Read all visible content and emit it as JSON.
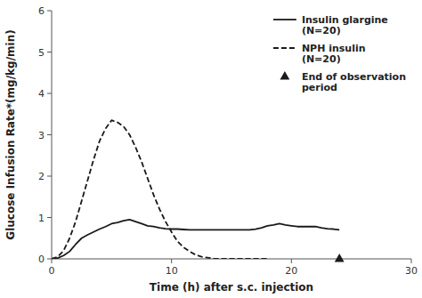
{
  "chart_data": {
    "type": "line",
    "xlabel": "Time (h) after s.c. injection",
    "ylabel": "Glucose Infusion Rate*(mg/kg/min)",
    "xlim": [
      0,
      30
    ],
    "ylim": [
      0,
      6
    ],
    "xticks": [
      0,
      10,
      20,
      30
    ],
    "yticks": [
      0,
      1,
      2,
      3,
      4,
      5,
      6
    ],
    "grid": false,
    "legend": "upper right",
    "series": [
      {
        "name": "Insulin glargine\n(N=20)",
        "color": "#1a1a1a",
        "line_style": "solid",
        "x": [
          0,
          0.5,
          1.0,
          1.5,
          2.0,
          2.5,
          3.0,
          3.5,
          4.0,
          4.5,
          5.0,
          5.5,
          6.0,
          6.5,
          7.0,
          7.5,
          8.0,
          8.5,
          9.0,
          9.5,
          10.0,
          10.5,
          11.0,
          11.5,
          12.0,
          12.5,
          13.0,
          13.5,
          14.0,
          14.5,
          15.0,
          15.5,
          16.0,
          16.5,
          17.0,
          17.5,
          18.0,
          18.5,
          19.0,
          19.5,
          20.0,
          20.5,
          21.0,
          21.5,
          22.0,
          22.5,
          23.0,
          23.5,
          24.0
        ],
        "values": [
          0.0,
          0.02,
          0.08,
          0.18,
          0.35,
          0.5,
          0.58,
          0.65,
          0.72,
          0.78,
          0.85,
          0.88,
          0.92,
          0.95,
          0.9,
          0.85,
          0.8,
          0.78,
          0.75,
          0.73,
          0.72,
          0.72,
          0.71,
          0.7,
          0.7,
          0.7,
          0.7,
          0.7,
          0.7,
          0.7,
          0.7,
          0.7,
          0.7,
          0.7,
          0.72,
          0.75,
          0.8,
          0.82,
          0.85,
          0.82,
          0.8,
          0.78,
          0.78,
          0.78,
          0.78,
          0.75,
          0.73,
          0.72,
          0.7
        ]
      },
      {
        "name": "NPH insulin\n(N=20)",
        "color": "#1a1a1a",
        "line_style": "dashed",
        "x": [
          0,
          0.5,
          1.0,
          1.5,
          2.0,
          2.5,
          3.0,
          3.5,
          4.0,
          4.5,
          5.0,
          5.5,
          6.0,
          6.5,
          7.0,
          7.5,
          8.0,
          8.5,
          9.0,
          9.5,
          10.0,
          10.5,
          11.0,
          11.5,
          12.0,
          12.5,
          13.0,
          13.5,
          14.0,
          14.5,
          15.0,
          15.5,
          16.0,
          16.5,
          17.0,
          17.5,
          18.0
        ],
        "values": [
          0.0,
          0.05,
          0.2,
          0.5,
          0.9,
          1.4,
          1.9,
          2.4,
          2.85,
          3.15,
          3.35,
          3.3,
          3.2,
          3.0,
          2.7,
          2.35,
          1.95,
          1.55,
          1.2,
          0.9,
          0.65,
          0.42,
          0.28,
          0.18,
          0.1,
          0.05,
          0.03,
          0.01,
          0.0,
          0.0,
          0.0,
          0.0,
          0.0,
          0.0,
          0.0,
          0.0,
          0.0
        ]
      },
      {
        "name": "End of observation\nperiod",
        "type": "scatter",
        "marker": "triangle",
        "color": "#1a1a1a",
        "x": [
          24.0
        ],
        "values": [
          0
        ]
      }
    ]
  }
}
